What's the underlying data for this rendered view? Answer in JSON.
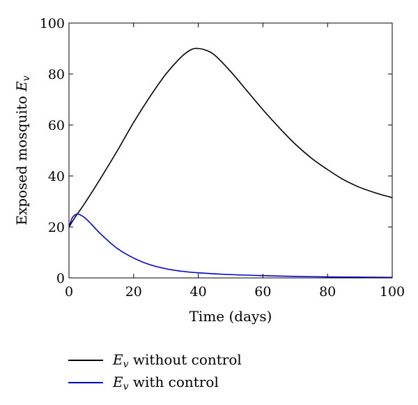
{
  "chart_data": {
    "type": "line",
    "title": "",
    "xlabel": "Time (days)",
    "ylabel": "Exposed mosquito E",
    "ylabel_subscript": "v",
    "xlim": [
      0,
      100
    ],
    "ylim": [
      0,
      100
    ],
    "x_ticks": [
      "0",
      "20",
      "40",
      "60",
      "80",
      "100"
    ],
    "y_ticks": [
      "0",
      "20",
      "40",
      "60",
      "80",
      "100"
    ],
    "grid": false,
    "legend_position": "below",
    "series": [
      {
        "name_symbol": "E",
        "name_subscript": "v",
        "name_rest": " without control",
        "color": "#000000",
        "points": [
          [
            0,
            20
          ],
          [
            2,
            24
          ],
          [
            5,
            29.5
          ],
          [
            10,
            39.5
          ],
          [
            15,
            50
          ],
          [
            20,
            61
          ],
          [
            25,
            71
          ],
          [
            30,
            80
          ],
          [
            35,
            87
          ],
          [
            38,
            89.7
          ],
          [
            40,
            90
          ],
          [
            42,
            89.5
          ],
          [
            45,
            87.5
          ],
          [
            50,
            81
          ],
          [
            55,
            73.5
          ],
          [
            60,
            66
          ],
          [
            65,
            59
          ],
          [
            70,
            52.5
          ],
          [
            75,
            47
          ],
          [
            80,
            42.5
          ],
          [
            85,
            38.5
          ],
          [
            90,
            35.5
          ],
          [
            95,
            33.3
          ],
          [
            100,
            31.5
          ]
        ]
      },
      {
        "name_symbol": "E",
        "name_subscript": "v",
        "name_rest": " with control",
        "color": "#0000cc",
        "points": [
          [
            0,
            20
          ],
          [
            1,
            23.5
          ],
          [
            2,
            24.8
          ],
          [
            3,
            25
          ],
          [
            5,
            23.5
          ],
          [
            7,
            21
          ],
          [
            10,
            17
          ],
          [
            15,
            11.5
          ],
          [
            20,
            7.8
          ],
          [
            25,
            5.2
          ],
          [
            30,
            3.6
          ],
          [
            35,
            2.6
          ],
          [
            40,
            2
          ],
          [
            50,
            1.3
          ],
          [
            60,
            0.9
          ],
          [
            70,
            0.6
          ],
          [
            80,
            0.4
          ],
          [
            90,
            0.3
          ],
          [
            100,
            0.2
          ]
        ]
      }
    ]
  }
}
